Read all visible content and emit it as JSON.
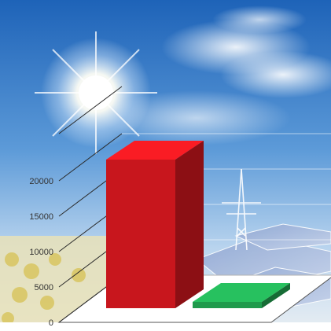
{
  "chart_data": {
    "type": "bar",
    "categories": [
      "",
      ""
    ],
    "values": [
      21000,
      800
    ],
    "ylim": [
      0,
      25000
    ],
    "yticks": [
      0,
      5000,
      10000,
      15000,
      20000
    ],
    "ytick_labels": [
      "0",
      "5000",
      "10000",
      "15000",
      "20000"
    ],
    "grid": true,
    "colors": [
      "#c8161d",
      "#1f9a4c"
    ],
    "background": "sky-with-sun-sunflowers-solar-panels"
  }
}
